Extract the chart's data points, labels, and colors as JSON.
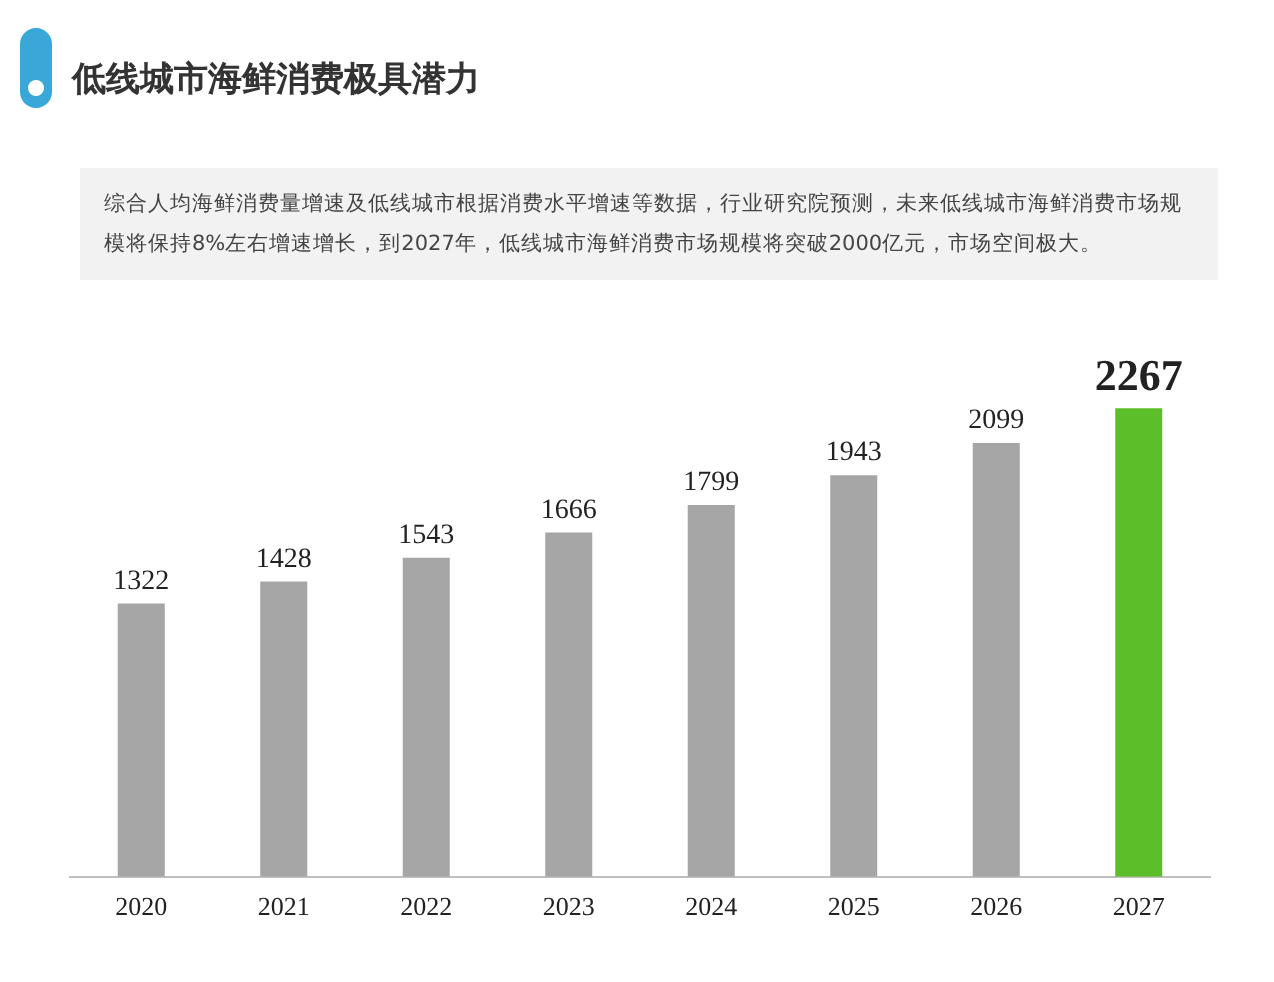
{
  "chart_data": {
    "type": "bar",
    "title": "低线城市海鲜消费极具潜力",
    "subtitle": "综合人均海鲜消费量增速及低线城市根据消费水平增速等数据，行业研究院预测，未来低线城市海鲜消费市场规模将保持8%左右增速增长，到2027年，低线城市海鲜消费市场规模将突破2000亿元，市场空间极大。",
    "categories": [
      "2020",
      "2021",
      "2022",
      "2023",
      "2024",
      "2025",
      "2026",
      "2027"
    ],
    "values": [
      1322,
      1428,
      1543,
      1666,
      1799,
      1943,
      2099,
      2267
    ],
    "colors": [
      "#a6a6a6",
      "#a6a6a6",
      "#a6a6a6",
      "#a6a6a6",
      "#a6a6a6",
      "#a6a6a6",
      "#a6a6a6",
      "#5cbf2a"
    ],
    "data_labels": true,
    "grid": false,
    "legend": false
  }
}
